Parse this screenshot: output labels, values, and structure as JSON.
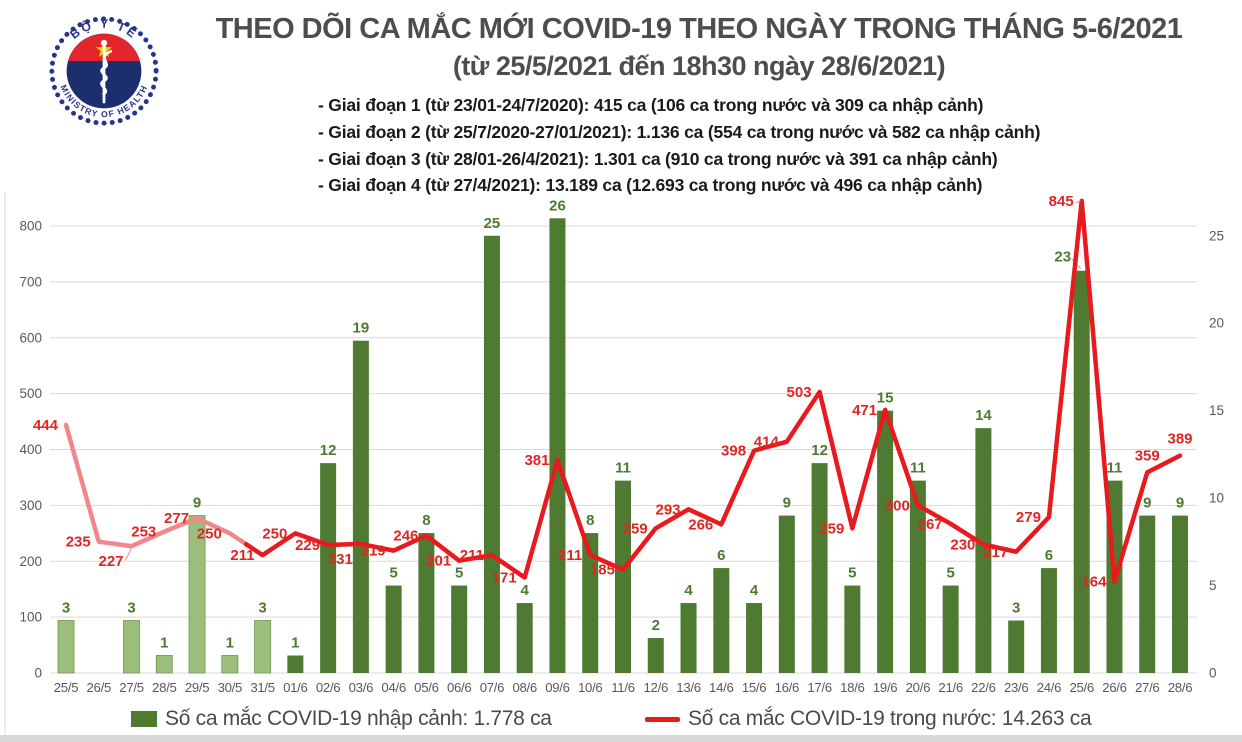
{
  "header": {
    "logo": {
      "top_text": "BỘ Y TẾ",
      "bottom_text": "MINISTRY OF HEALTH"
    },
    "title": "THEO DÕI CA MẮC MỚI COVID-19 THEO NGÀY TRONG THÁNG 5-6/2021",
    "subtitle": "(từ 25/5/2021 đến 18h30 ngày 28/6/2021)",
    "phases": [
      "- Giai đoạn 1 (từ 23/01-24/7/2020): 415 ca (106 ca trong nước và 309 ca nhập cảnh)",
      "- Giai đoạn 2 (từ 25/7/2020-27/01/2021): 1.136 ca (554 ca trong nước và 582 ca nhập cảnh)",
      "- Giai đoạn 3 (từ 28/01-26/4/2021): 1.301 ca (910 ca trong nước và 391 ca nhập cảnh)",
      "- Giai đoạn 4 (từ 27/4/2021): 13.189 ca (12.693 ca trong nước và 496 ca nhập cảnh)"
    ]
  },
  "chart_data": {
    "type": "combo",
    "categories": [
      "25/5",
      "26/5",
      "27/5",
      "28/5",
      "29/5",
      "30/5",
      "31/5",
      "01/6",
      "02/6",
      "03/6",
      "04/6",
      "05/6",
      "06/6",
      "07/6",
      "08/6",
      "09/6",
      "10/6",
      "11/6",
      "12/6",
      "13/6",
      "14/6",
      "15/6",
      "16/6",
      "17/6",
      "18/6",
      "19/6",
      "20/6",
      "21/6",
      "22/6",
      "23/6",
      "24/6",
      "25/6",
      "26/6",
      "27/6",
      "28/6"
    ],
    "series": [
      {
        "name": "Số ca mắc COVID-19 nhập cảnh",
        "type": "bar",
        "axis": "right",
        "values": [
          3,
          0,
          3,
          1,
          9,
          1,
          3,
          1,
          12,
          19,
          5,
          8,
          5,
          25,
          4,
          26,
          8,
          11,
          2,
          4,
          6,
          4,
          9,
          12,
          5,
          15,
          11,
          5,
          14,
          3,
          6,
          23,
          11,
          9,
          9
        ]
      },
      {
        "name": "Số ca mắc COVID-19 trong nước",
        "type": "line",
        "axis": "left",
        "values": [
          444,
          235,
          227,
          253,
          277,
          250,
          211,
          250,
          229,
          231,
          219,
          246,
          201,
          211,
          171,
          381,
          211,
          185,
          259,
          293,
          266,
          398,
          414,
          503,
          259,
          471,
          300,
          267,
          230,
          217,
          279,
          845,
          164,
          359,
          389
        ]
      }
    ],
    "left_axis": {
      "min": 0,
      "max": 800,
      "tick_step": 100
    },
    "right_axis": {
      "min": 0,
      "max": 25,
      "tick_step": 5
    },
    "grid": true,
    "legend_position": "bottom",
    "line_label_positions": {
      "below": [
        2,
        9
      ],
      "above": [
        33,
        34
      ],
      "default": "left"
    },
    "may_june_split_index": 6,
    "notes": "Dates in May (25/5-31/5) drawn in lighter shades; June dates in saturated colors"
  },
  "legend": {
    "items": [
      {
        "label": "Số ca mắc COVID-19 nhập cảnh: 1.778 ca",
        "swatch": "square"
      },
      {
        "label": "Số ca mắc COVID-19 trong nước: 14.263 ca",
        "swatch": "line"
      }
    ]
  },
  "colors": {
    "bar_june": "#4e7b31",
    "bar_may": "#9cbe7d",
    "bar_may_border": "#7fa35e",
    "line_june": "#e81a1d",
    "line_may": "#f2878b",
    "label_red": "#e02622",
    "label_green": "#4e7b31",
    "axis_text": "#595959",
    "grid": "#d9d9d9",
    "title": "#4d4d4d",
    "body_text": "#1a1a1a",
    "legend_text": "#4a4a4a",
    "logo_blue": "#27348b",
    "logo_navy": "#1c2e6e",
    "logo_red": "#e4252c",
    "logo_star": "#ffd200",
    "leader": "#a6a6a6",
    "bottom_strip": "#d8d8d8"
  }
}
